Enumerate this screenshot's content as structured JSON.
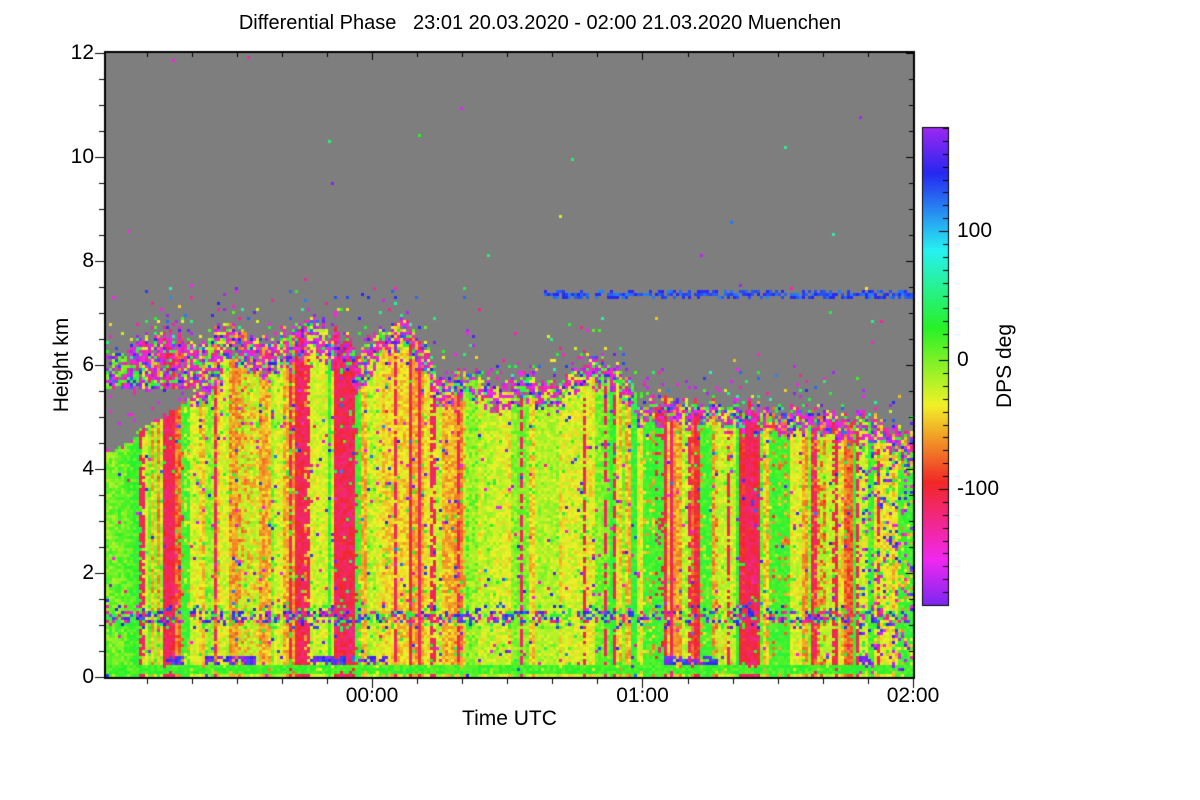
{
  "chart": {
    "title": "Differential Phase   23:01 20.03.2020 - 02:00 21.03.2020 Muenchen",
    "xlabel": "Time UTC",
    "ylabel": "Height km",
    "colorbar_label": "DPS deg"
  },
  "chart_data": {
    "type": "heatmap",
    "title": "Differential Phase   23:01 20.03.2020 - 02:00 21.03.2020 Muenchen",
    "site": "Muenchen",
    "x_axis": {
      "label": "Time UTC",
      "start": "23:01 20.03.2020",
      "end": "02:00 21.03.2020",
      "duration_minutes": 179,
      "major_ticks": [
        {
          "minute": 59,
          "label": "00:00"
        },
        {
          "minute": 119,
          "label": "01:00"
        },
        {
          "minute": 179,
          "label": "02:00"
        }
      ],
      "minor_tick_every_minutes": 10,
      "first_minor_minute": 9
    },
    "y_axis": {
      "label": "Height km",
      "min": 0,
      "max": 12,
      "major_ticks": [
        0,
        2,
        4,
        6,
        8,
        10,
        12
      ],
      "minor_step": 0.5
    },
    "colorbar": {
      "label": "DPS deg",
      "min": -190,
      "max": 180,
      "tick_labels": [
        {
          "value": 100,
          "label": "100"
        },
        {
          "value": 0,
          "label": "0"
        },
        {
          "value": -100,
          "label": "-100"
        }
      ],
      "minor_tick_step": 10,
      "colormap": "cyclic-hsv",
      "hue_at_zero_deg": 95
    },
    "no_data_color": "#7E7E7E",
    "echo_top_profile_km": [
      [
        0,
        6.0
      ],
      [
        5,
        6.3
      ],
      [
        12,
        6.6
      ],
      [
        21,
        6.4
      ],
      [
        27,
        6.8
      ],
      [
        36,
        6.5
      ],
      [
        47,
        6.9
      ],
      [
        56,
        6.3
      ],
      [
        65,
        6.9
      ],
      [
        70,
        6.5
      ],
      [
        74,
        5.7
      ],
      [
        81,
        5.9
      ],
      [
        87,
        5.5
      ],
      [
        94,
        5.8
      ],
      [
        101,
        5.6
      ],
      [
        107,
        6.2
      ],
      [
        114,
        5.9
      ],
      [
        118,
        5.3
      ],
      [
        132,
        5.3
      ],
      [
        145,
        5.2
      ],
      [
        158,
        5.1
      ],
      [
        169,
        5.0
      ],
      [
        179,
        4.6
      ]
    ],
    "features": {
      "seed": 1234,
      "dominant_value_deg": -60,
      "melting_band_km": [
        1.02,
        1.27
      ],
      "ground_green_band_km": [
        0.05,
        0.21
      ],
      "blue_stripe": {
        "height_km": 7.34,
        "from_minute": 97,
        "to_minute": 179
      },
      "left_gray_wedge": {
        "minutes": [
          0,
          23
        ],
        "height_km": [
          4.25,
          5.55
        ]
      },
      "green_columns_minutes": [
        [
          16.5,
          18.5
        ],
        [
          55,
          56.5
        ],
        [
          119,
          123.5
        ],
        [
          131.5,
          134.5
        ],
        [
          147,
          152
        ],
        [
          175.5,
          179
        ]
      ],
      "yellow_columns_minutes": [
        [
          29,
          34
        ],
        [
          79,
          84
        ],
        [
          95,
          100
        ],
        [
          135,
          140
        ],
        [
          158,
          163
        ]
      ],
      "crimson_streak_minutes": [
        8,
        14,
        24.5,
        41,
        44.5,
        51.5,
        53.5,
        64,
        69.5,
        72.5,
        78,
        92,
        106,
        111,
        113,
        125.5,
        129.5,
        138,
        142.5,
        157,
        162,
        166.5,
        171.5
      ],
      "purple_ground_blobs": {
        "height_km": [
          0.22,
          0.4
        ],
        "minute_ranges": [
          [
            13.5,
            17.5
          ],
          [
            22,
            33.5
          ],
          [
            45,
            53.5
          ],
          [
            56,
            62.5
          ],
          [
            123.5,
            136
          ],
          [
            167,
            170
          ]
        ]
      },
      "noisy_right_zone_from_minute": 167
    }
  }
}
